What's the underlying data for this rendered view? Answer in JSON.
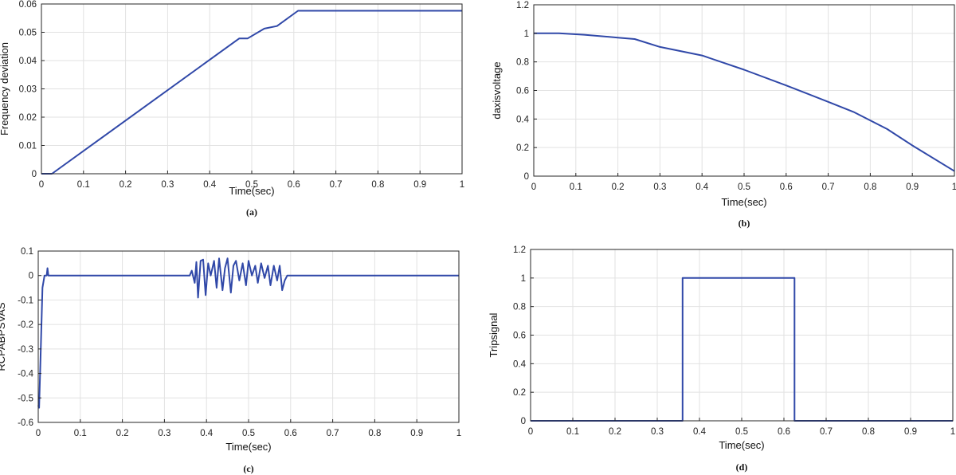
{
  "chart_data": [
    {
      "id": "a",
      "type": "line",
      "caption": "(a)",
      "xlabel": "Time(sec)",
      "ylabel": "Frequency deviation",
      "xlim": [
        0,
        1
      ],
      "ylim": [
        0,
        0.06
      ],
      "xticks": [
        "0",
        "0.1",
        "0.2",
        "0.3",
        "0.4",
        "0.5",
        "0.6",
        "0.7",
        "0.8",
        "0.9",
        "1"
      ],
      "yticks": [
        "0",
        "0.01",
        "0.02",
        "0.03",
        "0.04",
        "0.05",
        "0.06"
      ],
      "grid": true,
      "color": "#3048a8",
      "x": [
        0,
        0.025,
        0.47,
        0.49,
        0.53,
        0.56,
        0.61,
        1.0
      ],
      "y": [
        0,
        0,
        0.0478,
        0.0478,
        0.0513,
        0.0522,
        0.0576,
        0.0576
      ]
    },
    {
      "id": "b",
      "type": "line",
      "caption": "(b)",
      "xlabel": "Time(sec)",
      "ylabel": "daxisvoltage",
      "xlim": [
        0,
        1
      ],
      "ylim": [
        0,
        1.2
      ],
      "xticks": [
        "0",
        "0.1",
        "0.2",
        "0.3",
        "0.4",
        "0.5",
        "0.6",
        "0.7",
        "0.8",
        "0.9",
        "1"
      ],
      "yticks": [
        "0",
        "0.2",
        "0.4",
        "0.6",
        "0.8",
        "1",
        "1.2"
      ],
      "grid": true,
      "color": "#3048a8",
      "x": [
        0,
        0.06,
        0.12,
        0.2,
        0.24,
        0.3,
        0.4,
        0.5,
        0.6,
        0.7,
        0.76,
        0.84,
        0.9,
        1.0
      ],
      "y": [
        1.0,
        1.0,
        0.99,
        0.97,
        0.96,
        0.905,
        0.845,
        0.745,
        0.635,
        0.52,
        0.45,
        0.33,
        0.215,
        0.035
      ]
    },
    {
      "id": "c",
      "type": "line",
      "caption": "(c)",
      "xlabel": "Time(sec)",
      "ylabel": "RCPABPSVAS",
      "xlim": [
        0,
        1
      ],
      "ylim": [
        -0.6,
        0.1
      ],
      "xticks": [
        "0",
        "0.1",
        "0.2",
        "0.3",
        "0.4",
        "0.5",
        "0.6",
        "0.7",
        "0.8",
        "0.9",
        "1"
      ],
      "yticks": [
        "-0.6",
        "-0.5",
        "-0.4",
        "-0.3",
        "-0.2",
        "-0.1",
        "0",
        "0.1"
      ],
      "grid": true,
      "color": "#3048a8",
      "x": [
        0,
        0.002,
        0.006,
        0.01,
        0.015,
        0.02,
        0.022,
        0.024,
        0.35,
        0.36,
        0.365,
        0.372,
        0.376,
        0.38,
        0.386,
        0.392,
        0.398,
        0.404,
        0.41,
        0.418,
        0.424,
        0.43,
        0.438,
        0.444,
        0.45,
        0.458,
        0.464,
        0.47,
        0.478,
        0.486,
        0.494,
        0.5,
        0.508,
        0.516,
        0.522,
        0.53,
        0.538,
        0.546,
        0.552,
        0.56,
        0.568,
        0.574,
        0.58,
        0.586,
        0.592,
        0.6,
        1.0
      ],
      "y": [
        -0.53,
        -0.54,
        -0.3,
        -0.05,
        0.0,
        0.0,
        0.03,
        0.0,
        0.0,
        0.0,
        0.02,
        -0.03,
        0.055,
        -0.09,
        0.06,
        0.065,
        -0.08,
        0.05,
        0.0,
        0.06,
        -0.05,
        0.07,
        -0.06,
        0.03,
        0.07,
        -0.07,
        0.04,
        0.06,
        -0.02,
        0.05,
        -0.04,
        0.06,
        0.0,
        0.04,
        -0.03,
        0.05,
        -0.01,
        0.04,
        -0.04,
        0.04,
        -0.02,
        0.04,
        -0.06,
        -0.02,
        0.0,
        0.0,
        0.0
      ]
    },
    {
      "id": "d",
      "type": "line",
      "caption": "(d)",
      "xlabel": "Time(sec)",
      "ylabel": "Tripsignal",
      "xlim": [
        0,
        1
      ],
      "ylim": [
        0,
        1.2
      ],
      "xticks": [
        "0",
        "0.1",
        "0.2",
        "0.3",
        "0.4",
        "0.5",
        "0.6",
        "0.7",
        "0.8",
        "0.9",
        "1"
      ],
      "yticks": [
        "0",
        "0.2",
        "0.4",
        "0.6",
        "0.8",
        "1",
        "1.2"
      ],
      "grid": true,
      "color": "#3048a8",
      "x": [
        0,
        0.36,
        0.36,
        0.625,
        0.625,
        1.0
      ],
      "y": [
        0,
        0,
        1,
        1,
        0,
        0
      ]
    }
  ]
}
